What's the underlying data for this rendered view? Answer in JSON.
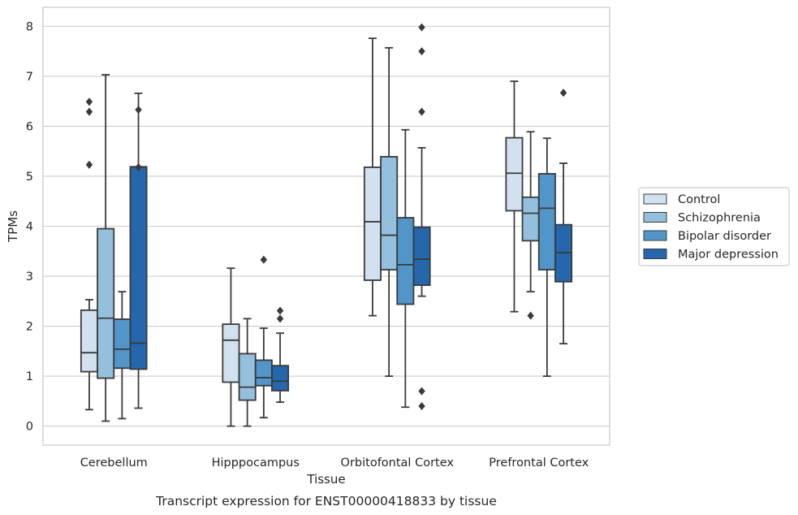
{
  "chart_data": {
    "type": "box",
    "caption": "Transcript expression for ENST00000418833 by tissue",
    "xlabel": "Tissue",
    "ylabel": "TPMs",
    "ylim": [
      -0.38,
      8.38
    ],
    "yticks": [
      0,
      1,
      2,
      3,
      4,
      5,
      6,
      7,
      8
    ],
    "grid": "horizontal",
    "legend_position": "right",
    "categories": [
      "Cerebellum",
      "Hipppocampus",
      "Orbitofontal Cortex",
      "Prefrontal Cortex"
    ],
    "series": [
      {
        "name": "Control",
        "color": "#d1e1ef",
        "boxes": [
          {
            "whislo": 0.33,
            "q1": 1.09,
            "med": 1.47,
            "q3": 2.32,
            "whishi": 2.53,
            "fliers": []
          },
          {
            "whislo": 0.0,
            "q1": 0.88,
            "med": 1.72,
            "q3": 2.04,
            "whishi": 3.16,
            "fliers": []
          },
          {
            "whislo": 2.21,
            "q1": 2.92,
            "med": 4.09,
            "q3": 5.18,
            "whishi": 7.76,
            "fliers": []
          },
          {
            "whislo": 2.29,
            "q1": 4.31,
            "med": 5.06,
            "q3": 5.77,
            "whishi": 6.9,
            "fliers": []
          }
        ]
      },
      {
        "name": "Schizophrenia",
        "color": "#94c0de",
        "boxes": [
          {
            "whislo": 0.1,
            "q1": 0.96,
            "med": 2.16,
            "q3": 3.95,
            "whishi": 7.03,
            "fliers": []
          },
          {
            "whislo": 0.0,
            "q1": 0.52,
            "med": 0.78,
            "q3": 1.45,
            "whishi": 2.15,
            "fliers": []
          },
          {
            "whislo": 1.0,
            "q1": 3.13,
            "med": 3.82,
            "q3": 5.39,
            "whishi": 7.57,
            "fliers": []
          },
          {
            "whislo": 2.69,
            "q1": 3.71,
            "med": 4.26,
            "q3": 4.58,
            "whishi": 5.89,
            "fliers": [
              2.21
            ]
          }
        ]
      },
      {
        "name": "Bipolar disorder",
        "color": "#5296c9",
        "boxes": [
          {
            "whislo": 0.15,
            "q1": 1.16,
            "med": 1.54,
            "q3": 2.14,
            "whishi": 2.69,
            "fliers": []
          },
          {
            "whislo": 0.17,
            "q1": 0.81,
            "med": 0.97,
            "q3": 1.32,
            "whishi": 1.96,
            "fliers": [
              3.33
            ]
          },
          {
            "whislo": 0.38,
            "q1": 2.44,
            "med": 3.23,
            "q3": 4.17,
            "whishi": 5.93,
            "fliers": []
          },
          {
            "whislo": 1.0,
            "q1": 3.13,
            "med": 4.36,
            "q3": 5.05,
            "whishi": 5.76,
            "fliers": []
          }
        ]
      },
      {
        "name": "Major depression",
        "color": "#2467ac",
        "boxes": [
          {
            "whislo": 0.36,
            "q1": 1.14,
            "med": 1.66,
            "q3": 5.19,
            "whishi": 6.66,
            "fliers": [
              5.18,
              6.33
            ]
          },
          {
            "whislo": 0.48,
            "q1": 0.71,
            "med": 0.9,
            "q3": 1.21,
            "whishi": 1.86,
            "fliers": [
              2.15,
              2.31
            ]
          },
          {
            "whislo": 2.6,
            "q1": 2.82,
            "med": 3.34,
            "q3": 3.98,
            "whishi": 5.57,
            "fliers": [
              0.4,
              0.7,
              6.29,
              7.5,
              7.98
            ]
          },
          {
            "whislo": 1.65,
            "q1": 2.89,
            "med": 3.47,
            "q3": 4.03,
            "whishi": 5.26,
            "fliers": [
              6.67
            ]
          }
        ]
      }
    ],
    "extra_fliers": [
      {
        "category": 0,
        "series": 0,
        "values": [
          5.23,
          6.29,
          6.49
        ]
      }
    ]
  }
}
